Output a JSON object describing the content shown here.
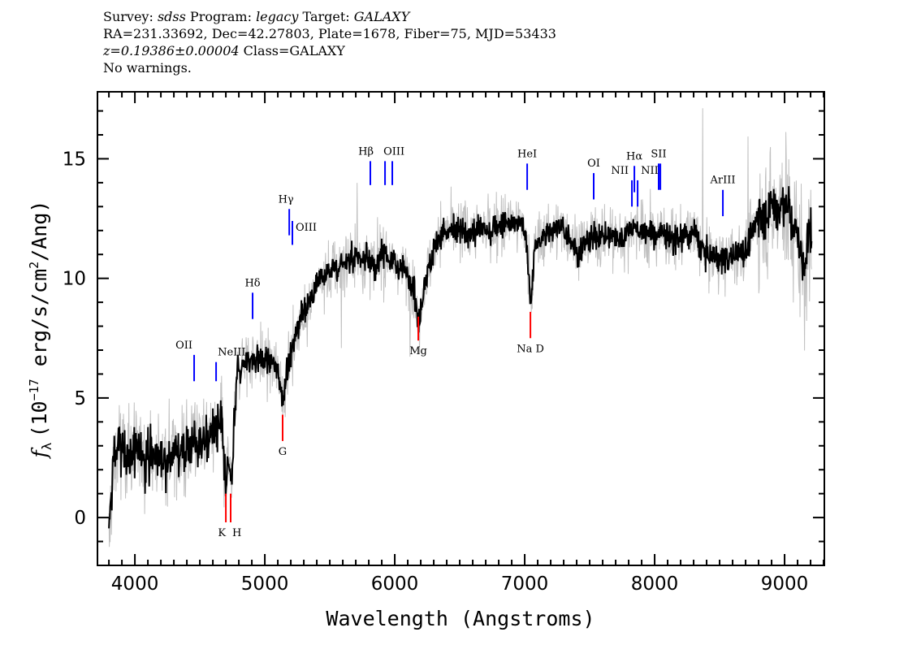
{
  "header": {
    "survey_label": "Survey:",
    "survey": "sdss",
    "program_label": "Program:",
    "program": "legacy",
    "target_label": "Target:",
    "target": "GALAXY",
    "line2": "RA=231.33692, Dec=42.27803, Plate=1678, Fiber=75, MJD=53433",
    "redshift": "z=0.19386±0.00004",
    "class": "Class=GALAXY",
    "warnings": "No warnings."
  },
  "chart_data": {
    "type": "line",
    "xlabel": "Wavelength (Angstroms)",
    "ylabel_parts": {
      "f": "f",
      "sub": "λ",
      "pre": "(10",
      "exp": "−17",
      "mid": " erg/s/cm",
      "sq": "2",
      "post": "/Ang)"
    },
    "xlim": [
      3712,
      9306
    ],
    "ylim": [
      -2.0,
      17.8
    ],
    "xticks": [
      4000,
      5000,
      6000,
      7000,
      8000,
      9000
    ],
    "yticks": [
      0,
      5,
      10,
      15
    ],
    "grid": false,
    "colors": {
      "flux": "#000000",
      "raw_flux": "#c0c0c0",
      "emission": "#0000ff",
      "absorption": "#ff0000"
    },
    "flux": [
      [
        3800,
        -1.0
      ],
      [
        3830,
        2.0
      ],
      [
        3870,
        3.0
      ],
      [
        3950,
        2.6
      ],
      [
        4050,
        2.8
      ],
      [
        4150,
        2.5
      ],
      [
        4250,
        2.6
      ],
      [
        4350,
        2.8
      ],
      [
        4450,
        3.2
      ],
      [
        4550,
        3.4
      ],
      [
        4620,
        3.6
      ],
      [
        4670,
        3.8
      ],
      [
        4700,
        0.8
      ],
      [
        4720,
        2.8
      ],
      [
        4740,
        1.2
      ],
      [
        4765,
        3.5
      ],
      [
        4790,
        6.0
      ],
      [
        4850,
        6.5
      ],
      [
        4950,
        6.6
      ],
      [
        5050,
        6.5
      ],
      [
        5110,
        6.0
      ],
      [
        5140,
        4.8
      ],
      [
        5170,
        6.2
      ],
      [
        5250,
        7.8
      ],
      [
        5320,
        8.8
      ],
      [
        5400,
        9.8
      ],
      [
        5500,
        10.2
      ],
      [
        5600,
        10.6
      ],
      [
        5700,
        10.9
      ],
      [
        5800,
        10.9
      ],
      [
        5850,
        10.2
      ],
      [
        5900,
        11.3
      ],
      [
        5980,
        10.6
      ],
      [
        6080,
        10.4
      ],
      [
        6150,
        9.6
      ],
      [
        6180,
        8.0
      ],
      [
        6220,
        9.6
      ],
      [
        6280,
        10.8
      ],
      [
        6330,
        11.8
      ],
      [
        6450,
        12.0
      ],
      [
        6600,
        12.0
      ],
      [
        6750,
        12.1
      ],
      [
        6900,
        12.4
      ],
      [
        6990,
        12.4
      ],
      [
        7020,
        11.0
      ],
      [
        7045,
        9.3
      ],
      [
        7080,
        11.3
      ],
      [
        7200,
        12.0
      ],
      [
        7300,
        12.1
      ],
      [
        7400,
        11.2
      ],
      [
        7500,
        11.6
      ],
      [
        7650,
        11.8
      ],
      [
        7750,
        11.7
      ],
      [
        7840,
        12.2
      ],
      [
        7950,
        11.8
      ],
      [
        8050,
        11.9
      ],
      [
        8150,
        11.6
      ],
      [
        8300,
        11.9
      ],
      [
        8380,
        11.1
      ],
      [
        8500,
        10.8
      ],
      [
        8620,
        11.0
      ],
      [
        8700,
        11.2
      ],
      [
        8800,
        12.6
      ],
      [
        8900,
        12.8
      ],
      [
        8990,
        13.3
      ],
      [
        9080,
        12.0
      ],
      [
        9150,
        10.6
      ],
      [
        9210,
        12.2
      ]
    ],
    "lines": [
      {
        "label": "OII",
        "wavelength": 4456,
        "type": "emission",
        "range": [
          5.7,
          6.8
        ]
      },
      {
        "label": "NeIII",
        "wavelength": 4625,
        "type": "emission",
        "range": [
          5.7,
          6.5
        ]
      },
      {
        "label": "Hδ",
        "wavelength": 4906,
        "type": "emission",
        "range": [
          8.3,
          9.4
        ]
      },
      {
        "label": "Hγ",
        "wavelength": 5188,
        "type": "emission",
        "range": [
          11.8,
          12.9
        ]
      },
      {
        "label": "OIII",
        "wavelength": 5212,
        "type": "emission",
        "range": [
          11.4,
          12.4
        ]
      },
      {
        "label": "Hβ",
        "wavelength": 5812,
        "type": "emission",
        "range": [
          13.9,
          14.9
        ]
      },
      {
        "label": "OIII",
        "wavelength": 5925,
        "type": "emission",
        "range": [
          13.9,
          14.9
        ]
      },
      {
        "label": "",
        "wavelength": 5981,
        "type": "emission",
        "range": [
          13.9,
          14.9
        ]
      },
      {
        "label": "HeI",
        "wavelength": 7019,
        "type": "emission",
        "range": [
          13.7,
          14.8
        ]
      },
      {
        "label": "OI",
        "wavelength": 7531,
        "type": "emission",
        "range": [
          13.3,
          14.4
        ]
      },
      {
        "label": "NII",
        "wavelength": 7825,
        "type": "emission",
        "range": [
          13.0,
          14.1
        ]
      },
      {
        "label": "Hα",
        "wavelength": 7844,
        "type": "emission",
        "range": [
          13.6,
          14.7
        ]
      },
      {
        "label": "NII",
        "wavelength": 7869,
        "type": "emission",
        "range": [
          13.0,
          14.1
        ]
      },
      {
        "label": "SII",
        "wavelength": 8031,
        "type": "emission",
        "range": [
          13.7,
          14.8
        ]
      },
      {
        "label": "",
        "wavelength": 8044,
        "type": "emission",
        "range": [
          13.7,
          14.8
        ]
      },
      {
        "label": "ArIII",
        "wavelength": 8525,
        "type": "emission",
        "range": [
          12.6,
          13.7
        ]
      },
      {
        "label": "K",
        "wavelength": 4700,
        "type": "absorption",
        "range": [
          -0.2,
          1.0
        ]
      },
      {
        "label": "H",
        "wavelength": 4737,
        "type": "absorption",
        "range": [
          -0.2,
          1.0
        ]
      },
      {
        "label": "G",
        "wavelength": 5137,
        "type": "absorption",
        "range": [
          3.2,
          4.3
        ]
      },
      {
        "label": "Mg",
        "wavelength": 6181,
        "type": "absorption",
        "range": [
          7.4,
          8.4
        ]
      },
      {
        "label": "Na D",
        "wavelength": 7044,
        "type": "absorption",
        "range": [
          7.5,
          8.6
        ]
      }
    ]
  }
}
